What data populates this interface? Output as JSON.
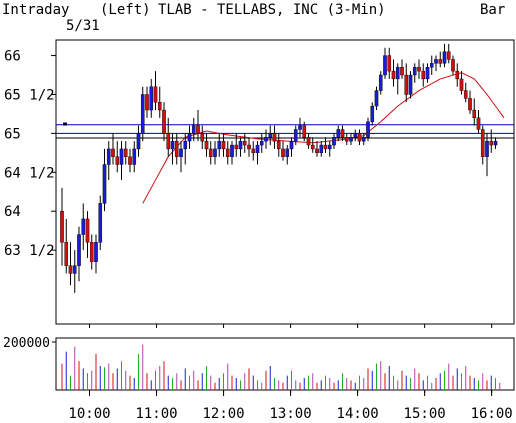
{
  "header": {
    "mode": "Intraday",
    "date": "5/31",
    "axis_side": "(Left)",
    "title": "TLAB - TELLABS, INC  (3-Min)",
    "chart_style": "Bar"
  },
  "colors": {
    "up": "#1a1ad8",
    "down": "#d01010",
    "ma": "#d01010",
    "hline": "#0000c0",
    "vol_palette": [
      "#d01010",
      "#1a1ad8",
      "#20b020",
      "#b040b0"
    ]
  },
  "chart_data": [
    {
      "type": "candlestick",
      "title": "TLAB - TELLABS, INC  (3-Min)",
      "interval_minutes": 3,
      "ylim": [
        62.55,
        66.2
      ],
      "yticks": [
        63.5,
        64,
        64.5,
        65,
        65.5,
        66
      ],
      "ytick_labels": [
        "63 1/2",
        "64",
        "64 1/2",
        "65",
        "65 1/2",
        "66"
      ],
      "xlim": [
        "09:30",
        "16:20"
      ],
      "xticks": [
        "10:00",
        "11:00",
        "12:00",
        "13:00",
        "14:00",
        "15:00",
        "16:00"
      ],
      "reference_lines": [
        65.11,
        65.0,
        64.94
      ],
      "prior_close_marker": 65.12,
      "ohlc": [
        [
          64.0,
          64.3,
          63.3,
          63.6
        ],
        [
          63.6,
          63.9,
          63.2,
          63.3
        ],
        [
          63.3,
          63.6,
          63.05,
          63.2
        ],
        [
          63.2,
          63.5,
          62.95,
          63.3
        ],
        [
          63.3,
          63.8,
          63.1,
          63.7
        ],
        [
          63.7,
          64.1,
          63.5,
          63.9
        ],
        [
          63.9,
          64.0,
          63.4,
          63.6
        ],
        [
          63.6,
          63.7,
          63.25,
          63.35
        ],
        [
          63.35,
          63.7,
          63.2,
          63.6
        ],
        [
          63.6,
          64.2,
          63.5,
          64.1
        ],
        [
          64.1,
          64.8,
          64.0,
          64.6
        ],
        [
          64.6,
          64.9,
          64.4,
          64.8
        ],
        [
          64.8,
          65.0,
          64.6,
          64.7
        ],
        [
          64.7,
          64.9,
          64.5,
          64.6
        ],
        [
          64.6,
          64.9,
          64.4,
          64.8
        ],
        [
          64.8,
          64.9,
          64.6,
          64.7
        ],
        [
          64.7,
          64.8,
          64.5,
          64.6
        ],
        [
          64.6,
          64.9,
          64.5,
          64.8
        ],
        [
          64.8,
          65.1,
          64.7,
          65.0
        ],
        [
          65.0,
          65.6,
          64.9,
          65.5
        ],
        [
          65.5,
          65.6,
          65.2,
          65.3
        ],
        [
          65.3,
          65.7,
          65.2,
          65.6
        ],
        [
          65.6,
          65.8,
          65.3,
          65.4
        ],
        [
          65.4,
          65.6,
          65.2,
          65.3
        ],
        [
          65.3,
          65.4,
          64.9,
          65.0
        ],
        [
          65.0,
          65.2,
          64.7,
          64.8
        ],
        [
          64.8,
          65.0,
          64.6,
          64.9
        ],
        [
          64.9,
          65.0,
          64.6,
          64.7
        ],
        [
          64.7,
          64.9,
          64.5,
          64.8
        ],
        [
          64.8,
          65.0,
          64.6,
          64.9
        ],
        [
          64.9,
          65.1,
          64.8,
          65.0
        ],
        [
          65.0,
          65.2,
          64.9,
          65.1
        ],
        [
          65.1,
          65.3,
          64.9,
          65.0
        ],
        [
          65.0,
          65.1,
          64.8,
          64.9
        ],
        [
          64.9,
          65.0,
          64.7,
          64.8
        ],
        [
          64.8,
          64.9,
          64.6,
          64.7
        ],
        [
          64.7,
          64.9,
          64.6,
          64.8
        ],
        [
          64.8,
          65.0,
          64.7,
          64.9
        ],
        [
          64.9,
          65.0,
          64.7,
          64.8
        ],
        [
          64.8,
          64.9,
          64.6,
          64.7
        ],
        [
          64.7,
          64.9,
          64.6,
          64.85
        ],
        [
          64.85,
          65.0,
          64.7,
          64.8
        ],
        [
          64.8,
          64.95,
          64.7,
          64.9
        ],
        [
          64.9,
          65.0,
          64.75,
          64.85
        ],
        [
          64.85,
          64.95,
          64.7,
          64.8
        ],
        [
          64.8,
          64.9,
          64.65,
          64.75
        ],
        [
          64.75,
          64.9,
          64.6,
          64.85
        ],
        [
          64.85,
          65.0,
          64.75,
          64.9
        ],
        [
          64.9,
          65.05,
          64.8,
          64.95
        ],
        [
          64.95,
          65.1,
          64.85,
          65.0
        ],
        [
          65.0,
          65.1,
          64.8,
          64.9
        ],
        [
          64.9,
          65.0,
          64.7,
          64.8
        ],
        [
          64.8,
          64.9,
          64.65,
          64.7
        ],
        [
          64.7,
          64.85,
          64.6,
          64.8
        ],
        [
          64.8,
          64.95,
          64.7,
          64.9
        ],
        [
          64.9,
          65.1,
          64.85,
          65.05
        ],
        [
          65.05,
          65.2,
          64.95,
          65.1
        ],
        [
          65.1,
          65.15,
          64.9,
          64.95
        ],
        [
          64.95,
          65.0,
          64.8,
          64.85
        ],
        [
          64.85,
          64.95,
          64.75,
          64.8
        ],
        [
          64.8,
          64.9,
          64.7,
          64.75
        ],
        [
          64.75,
          64.9,
          64.7,
          64.85
        ],
        [
          64.85,
          64.95,
          64.75,
          64.8
        ],
        [
          64.8,
          64.9,
          64.7,
          64.85
        ],
        [
          64.85,
          65.0,
          64.8,
          64.95
        ],
        [
          64.95,
          65.1,
          64.9,
          65.05
        ],
        [
          65.05,
          65.1,
          64.9,
          64.95
        ],
        [
          64.95,
          65.0,
          64.85,
          64.9
        ],
        [
          64.9,
          65.0,
          64.85,
          64.95
        ],
        [
          64.95,
          65.05,
          64.9,
          65.0
        ],
        [
          65.0,
          65.05,
          64.85,
          64.9
        ],
        [
          64.9,
          65.0,
          64.85,
          64.95
        ],
        [
          64.95,
          65.2,
          64.9,
          65.15
        ],
        [
          65.15,
          65.4,
          65.1,
          65.35
        ],
        [
          65.35,
          65.6,
          65.3,
          65.55
        ],
        [
          65.55,
          65.8,
          65.5,
          65.75
        ],
        [
          65.75,
          66.1,
          65.7,
          66.0
        ],
        [
          66.0,
          66.1,
          65.7,
          65.8
        ],
        [
          65.8,
          65.95,
          65.6,
          65.7
        ],
        [
          65.7,
          65.9,
          65.5,
          65.85
        ],
        [
          65.85,
          65.95,
          65.7,
          65.75
        ],
        [
          65.75,
          65.9,
          65.4,
          65.5
        ],
        [
          65.5,
          65.8,
          65.45,
          65.75
        ],
        [
          65.75,
          65.9,
          65.65,
          65.85
        ],
        [
          65.85,
          65.95,
          65.7,
          65.8
        ],
        [
          65.8,
          65.9,
          65.6,
          65.7
        ],
        [
          65.7,
          65.9,
          65.65,
          65.85
        ],
        [
          65.85,
          66.0,
          65.75,
          65.9
        ],
        [
          65.9,
          66.0,
          65.8,
          65.95
        ],
        [
          65.95,
          66.05,
          65.85,
          65.9
        ],
        [
          65.9,
          66.15,
          65.85,
          66.05
        ],
        [
          66.05,
          66.15,
          65.9,
          65.95
        ],
        [
          65.95,
          66.0,
          65.75,
          65.8
        ],
        [
          65.8,
          65.9,
          65.6,
          65.7
        ],
        [
          65.7,
          65.8,
          65.5,
          65.55
        ],
        [
          65.55,
          65.65,
          65.4,
          65.45
        ],
        [
          65.45,
          65.55,
          65.25,
          65.3
        ],
        [
          65.3,
          65.45,
          65.1,
          65.2
        ],
        [
          65.2,
          65.3,
          65.0,
          65.05
        ],
        [
          65.05,
          65.1,
          64.6,
          64.7
        ],
        [
          64.7,
          65.0,
          64.45,
          64.9
        ],
        [
          64.9,
          65.05,
          64.75,
          64.85
        ],
        [
          64.85,
          64.95,
          64.8,
          64.9
        ]
      ],
      "moving_average": [
        [
          19,
          64.1
        ],
        [
          22,
          64.4
        ],
        [
          25,
          64.7
        ],
        [
          29,
          64.95
        ],
        [
          34,
          65.03
        ],
        [
          39,
          64.98
        ],
        [
          46,
          64.93
        ],
        [
          53,
          64.9
        ],
        [
          59,
          64.88
        ],
        [
          66,
          64.92
        ],
        [
          71,
          64.97
        ],
        [
          75,
          65.15
        ],
        [
          79,
          65.35
        ],
        [
          84,
          65.55
        ],
        [
          89,
          65.7
        ],
        [
          94,
          65.78
        ],
        [
          97,
          65.7
        ],
        [
          100,
          65.5
        ],
        [
          102,
          65.35
        ],
        [
          104,
          65.2
        ]
      ]
    },
    {
      "type": "bar",
      "title": "Volume",
      "ylim": [
        0,
        200000
      ],
      "yticks": [
        200000
      ],
      "ytick_labels": [
        "200000"
      ],
      "values": [
        110000,
        160000,
        60000,
        180000,
        120000,
        90000,
        70000,
        80000,
        150000,
        100000,
        95000,
        110000,
        70000,
        90000,
        120000,
        80000,
        60000,
        50000,
        150000,
        190000,
        70000,
        40000,
        80000,
        100000,
        120000,
        60000,
        50000,
        70000,
        40000,
        90000,
        60000,
        80000,
        40000,
        70000,
        100000,
        60000,
        30000,
        50000,
        70000,
        110000,
        60000,
        50000,
        40000,
        70000,
        90000,
        60000,
        40000,
        30000,
        80000,
        100000,
        50000,
        40000,
        30000,
        60000,
        80000,
        40000,
        30000,
        50000,
        60000,
        70000,
        30000,
        40000,
        60000,
        50000,
        30000,
        40000,
        70000,
        50000,
        40000,
        30000,
        60000,
        50000,
        90000,
        80000,
        110000,
        120000,
        70000,
        100000,
        60000,
        40000,
        80000,
        60000,
        50000,
        90000,
        70000,
        40000,
        60000,
        30000,
        50000,
        70000,
        80000,
        110000,
        60000,
        90000,
        70000,
        100000,
        60000,
        50000,
        40000,
        70000,
        40000,
        60000,
        50000,
        30000
      ]
    }
  ]
}
